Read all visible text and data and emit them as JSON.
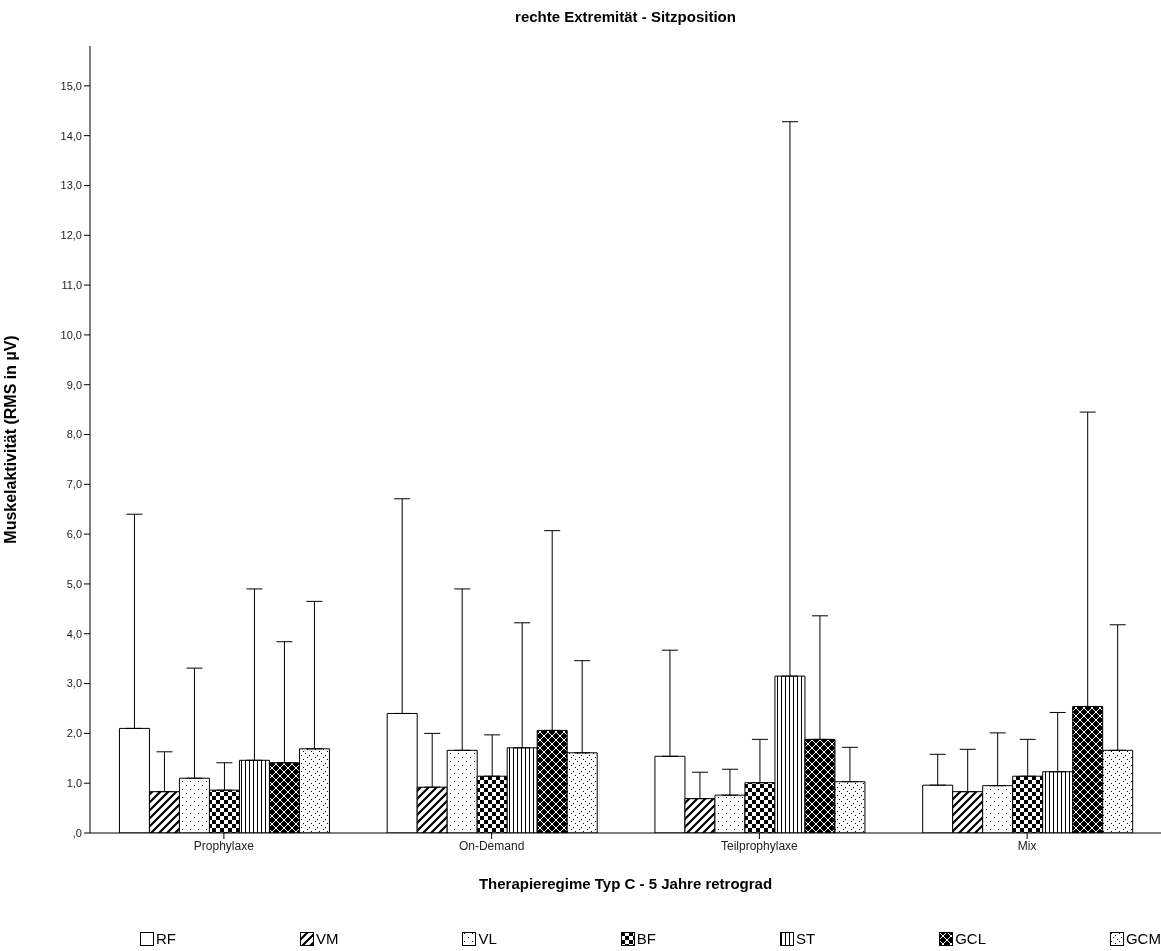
{
  "chart_data": {
    "type": "bar",
    "title": "rechte Extremität - Sitzposition",
    "xlabel": "Therapieregime Typ C - 5 Jahre retrograd",
    "ylabel": "Muskelaktivität (RMS in µV)",
    "categories": [
      "Prophylaxe",
      "On-Demand",
      "Teilprophylaxe",
      "Mix"
    ],
    "series": [
      {
        "name": "RF",
        "color": "#ffffff",
        "values": [
          2.1,
          2.4,
          1.54,
          0.96
        ],
        "errors": [
          [
            2.1,
            6.4
          ],
          [
            2.4,
            6.71
          ],
          [
            1.54,
            3.67
          ],
          [
            0.96,
            1.58
          ]
        ]
      },
      {
        "name": "VM",
        "color": "#000000",
        "values": [
          0.83,
          0.92,
          0.69,
          0.83
        ],
        "errors": [
          [
            0.83,
            1.63
          ],
          [
            0.92,
            2.0
          ],
          [
            0.69,
            1.22
          ],
          [
            0.83,
            1.68
          ]
        ]
      },
      {
        "name": "VL",
        "color": "#000000",
        "values": [
          1.1,
          1.66,
          0.76,
          0.95
        ],
        "errors": [
          [
            1.1,
            3.31
          ],
          [
            1.66,
            4.9
          ],
          [
            0.76,
            1.28
          ],
          [
            0.95,
            2.01
          ]
        ]
      },
      {
        "name": "BF",
        "color": "#000000",
        "values": [
          0.86,
          1.14,
          1.01,
          1.14
        ],
        "errors": [
          [
            0.86,
            1.41
          ],
          [
            1.14,
            1.97
          ],
          [
            1.01,
            1.88
          ],
          [
            1.14,
            1.88
          ]
        ]
      },
      {
        "name": "ST",
        "color": "#000000",
        "values": [
          1.46,
          1.71,
          3.15,
          1.23
        ],
        "errors": [
          [
            1.46,
            4.9
          ],
          [
            1.71,
            4.22
          ],
          [
            3.15,
            14.28
          ],
          [
            1.23,
            2.42
          ]
        ]
      },
      {
        "name": "GCL",
        "color": "#000000",
        "values": [
          1.41,
          2.06,
          1.88,
          2.54
        ],
        "errors": [
          [
            1.41,
            3.84
          ],
          [
            2.06,
            6.07
          ],
          [
            1.88,
            4.36
          ],
          [
            2.54,
            8.45
          ]
        ]
      },
      {
        "name": "GCM",
        "color": "#000000",
        "values": [
          1.69,
          1.61,
          1.03,
          1.66
        ],
        "errors": [
          [
            1.69,
            4.65
          ],
          [
            1.61,
            3.46
          ],
          [
            1.03,
            1.72
          ],
          [
            1.66,
            4.18
          ]
        ]
      }
    ],
    "ylim": [
      0,
      15.8
    ],
    "yticks": [
      {
        "value": 0,
        "label": ",0"
      },
      {
        "value": 1,
        "label": "1,0"
      },
      {
        "value": 2,
        "label": "2,0"
      },
      {
        "value": 3,
        "label": "3,0"
      },
      {
        "value": 4,
        "label": "4,0"
      },
      {
        "value": 5,
        "label": "5,0"
      },
      {
        "value": 6,
        "label": "6,0"
      },
      {
        "value": 7,
        "label": "7,0"
      },
      {
        "value": 8,
        "label": "8,0"
      },
      {
        "value": 9,
        "label": "9,0"
      },
      {
        "value": 10,
        "label": "10,0"
      },
      {
        "value": 11,
        "label": "11,0"
      },
      {
        "value": 12,
        "label": "12,0"
      },
      {
        "value": 13,
        "label": "13,0"
      },
      {
        "value": 14,
        "label": "14,0"
      },
      {
        "value": 15,
        "label": "15,0"
      }
    ],
    "grid": false,
    "legend": "bottom"
  }
}
